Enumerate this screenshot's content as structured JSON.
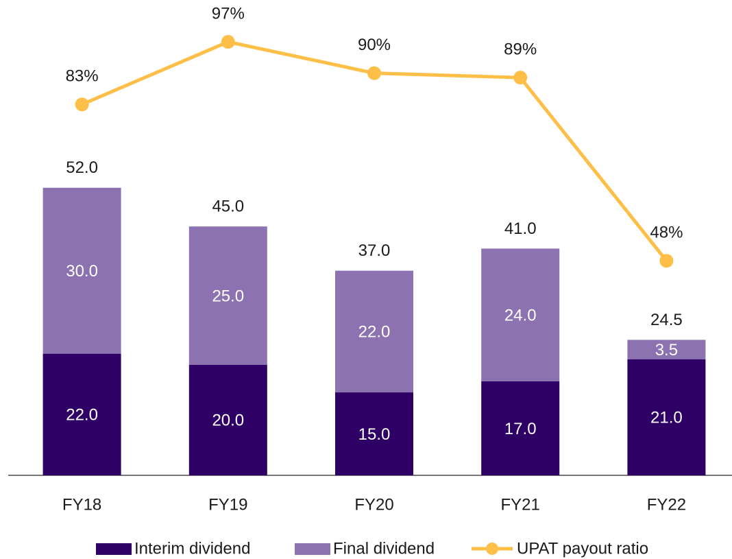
{
  "chart_data": {
    "type": "bar",
    "stacked": true,
    "categories": [
      "FY18",
      "FY19",
      "FY20",
      "FY21",
      "FY22"
    ],
    "series": [
      {
        "name": "Interim dividend",
        "color": "#2e0066",
        "values": [
          22,
          20,
          15,
          17,
          21
        ],
        "value_labels": [
          "22.0",
          "20.0",
          "15.0",
          "17.0",
          "21.0"
        ]
      },
      {
        "name": "Final dividend",
        "color": "#8c72b0",
        "values": [
          30,
          25,
          22,
          24,
          3.5
        ],
        "value_labels": [
          "30.0",
          "25.0",
          "22.0",
          "24.0",
          "3.5"
        ]
      },
      {
        "name": "UPAT payout ratio",
        "type": "line",
        "axis": "y2",
        "color": "#fdbf47",
        "values": [
          83,
          97,
          90,
          89,
          48
        ],
        "value_labels": [
          "83%",
          "97%",
          "90%",
          "89%",
          "48%"
        ]
      }
    ],
    "total_labels": [
      "52.0",
      "45.0",
      "37.0",
      "41.0",
      "24.5"
    ],
    "ylim": [
      0,
      80
    ],
    "y2lim": [
      0,
      99
    ],
    "legend": "bottom"
  }
}
